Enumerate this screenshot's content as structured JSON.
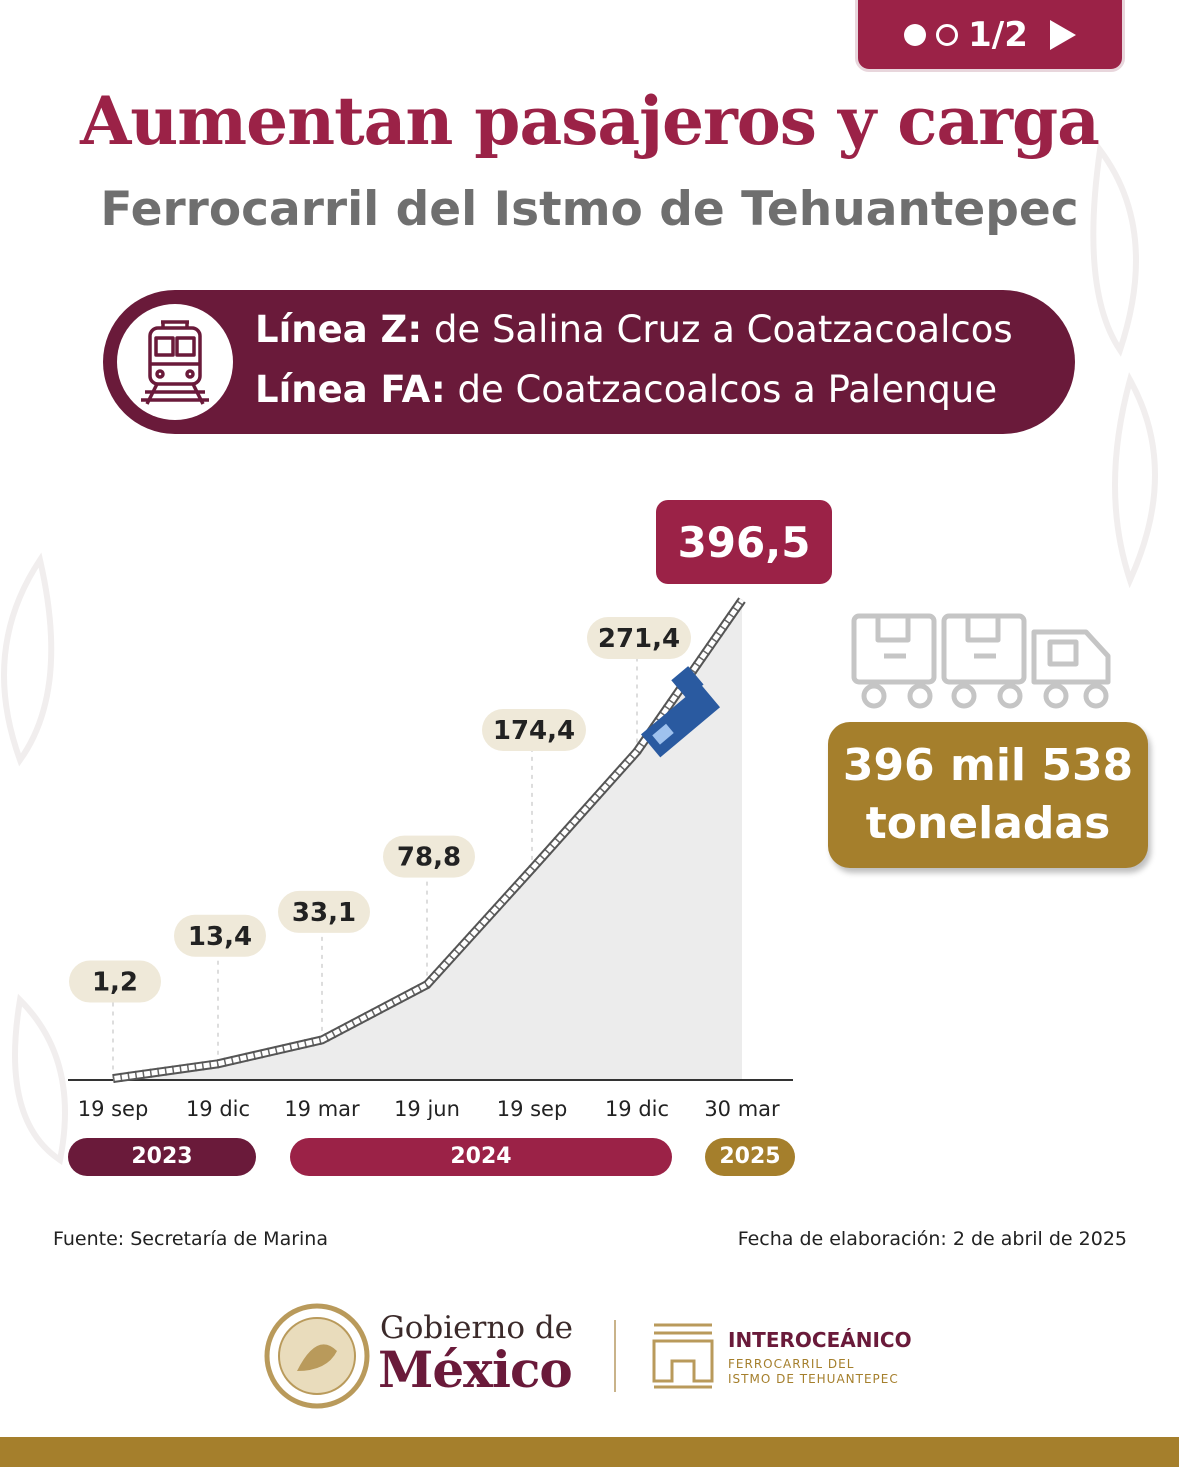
{
  "pager": {
    "current": "1/2"
  },
  "header": {
    "title": "Aumentan pasajeros y carga",
    "subtitle": "Ferrocarril del Istmo de Tehuantepec"
  },
  "lines": [
    {
      "name": "Línea Z:",
      "route": "de Salina Cruz a Coatzacoalcos"
    },
    {
      "name": "Línea FA:",
      "route": "de Coatzacoalcos a Palenque"
    }
  ],
  "highlight": {
    "total_label": "396 mil 538 toneladas",
    "line1": "396 mil 538",
    "line2": "toneladas"
  },
  "chart_data": {
    "type": "area",
    "title": "",
    "xlabel": "",
    "ylabel": "",
    "x": [
      "19 sep",
      "19 dic",
      "19 mar",
      "19 jun",
      "19 sep",
      "19 dic",
      "30 mar"
    ],
    "series": [
      {
        "values": [
          1.2,
          13.4,
          33.1,
          78.8,
          174.4,
          271.4,
          396.5
        ]
      }
    ],
    "data_labels": [
      "1,2",
      "13,4",
      "33,1",
      "78,8",
      "174,4",
      "271,4",
      "396,5"
    ],
    "years": [
      {
        "label": "2023",
        "color": "#6a1a3a"
      },
      {
        "label": "2024",
        "color": "#9b2247"
      },
      {
        "label": "2025",
        "color": "#a57f2c"
      }
    ],
    "ylim": [
      0,
      396.5
    ],
    "grid": false
  },
  "footer": {
    "source": "Fuente: Secretaría de Marina",
    "date": "Fecha de elaboración: 2 de abril de 2025",
    "gob_line1": "Gobierno de",
    "gob_line2": "México",
    "inter_title": "INTEROCEÁNICO",
    "inter_sub1": "FERROCARRIL DEL",
    "inter_sub2": "ISTMO DE TEHUANTEPEC"
  },
  "colors": {
    "guinda": "#9b2247",
    "guinda_dark": "#6a1a3a",
    "gold": "#a57f2c",
    "label_bg": "#efe9d9"
  }
}
